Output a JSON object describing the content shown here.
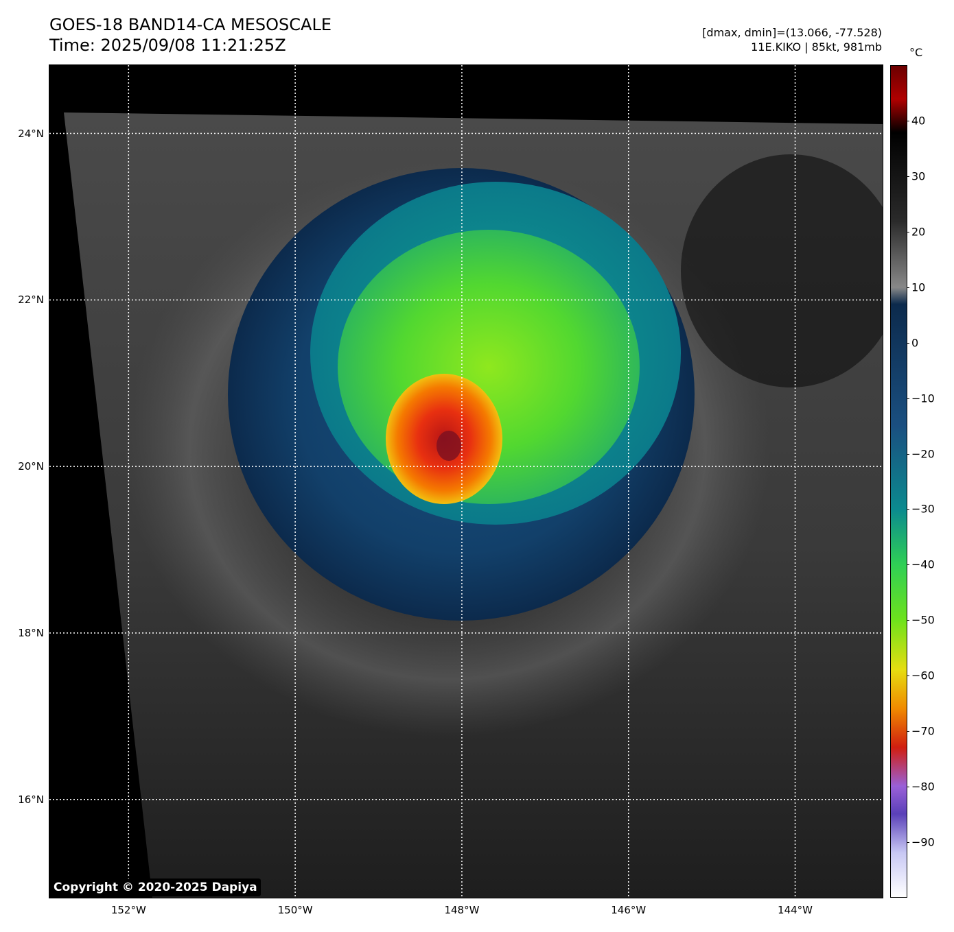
{
  "header": {
    "title_line1": "GOES-18 BAND14-CA MESOSCALE",
    "title_line2": "Time: 2025/09/08 11:21:25Z",
    "info_line1": "[dmax, dmin]=(13.066, -77.528)",
    "info_line2": "11E.KIKO | 85kt, 981mb"
  },
  "map": {
    "lat_labels": [
      "24°N",
      "22°N",
      "20°N",
      "18°N",
      "16°N"
    ],
    "lon_labels": [
      "152°W",
      "150°W",
      "148°W",
      "146°W",
      "144°W"
    ],
    "lat_values": [
      24,
      22,
      20,
      18,
      16
    ],
    "lon_values": [
      -152,
      -150,
      -148,
      -146,
      -144
    ],
    "lat_range": [
      14.82,
      24.82
    ],
    "lon_range": [
      -152.95,
      -142.95
    ],
    "gridlines": "dotted white"
  },
  "colorbar": {
    "unit": "°C",
    "tick_labels": [
      "40",
      "30",
      "20",
      "10",
      "0",
      "−10",
      "−20",
      "−30",
      "−40",
      "−50",
      "−60",
      "−70",
      "−80",
      "−90"
    ],
    "tick_values": [
      40,
      30,
      20,
      10,
      0,
      -10,
      -20,
      -30,
      -40,
      -50,
      -60,
      -70,
      -80,
      -90
    ],
    "range": [
      -100,
      50
    ],
    "colors": {
      "warm_top": "#6b0000",
      "black": "#000000",
      "gray": "#888888",
      "dark_blue": "#0c2a4c",
      "blue": "#1a4f80",
      "teal": "#0b8a8f",
      "green": "#2fcf55",
      "lime": "#6ee21c",
      "yellow": "#e6dd10",
      "orange": "#f08a00",
      "red": "#d01e10",
      "purple": "#9a60d8",
      "indigo": "#5a40b8",
      "lavender": "#c8c8f4",
      "white": "#ffffff"
    }
  },
  "copyright": "Copyright © 2020-2025 Dapiya"
}
